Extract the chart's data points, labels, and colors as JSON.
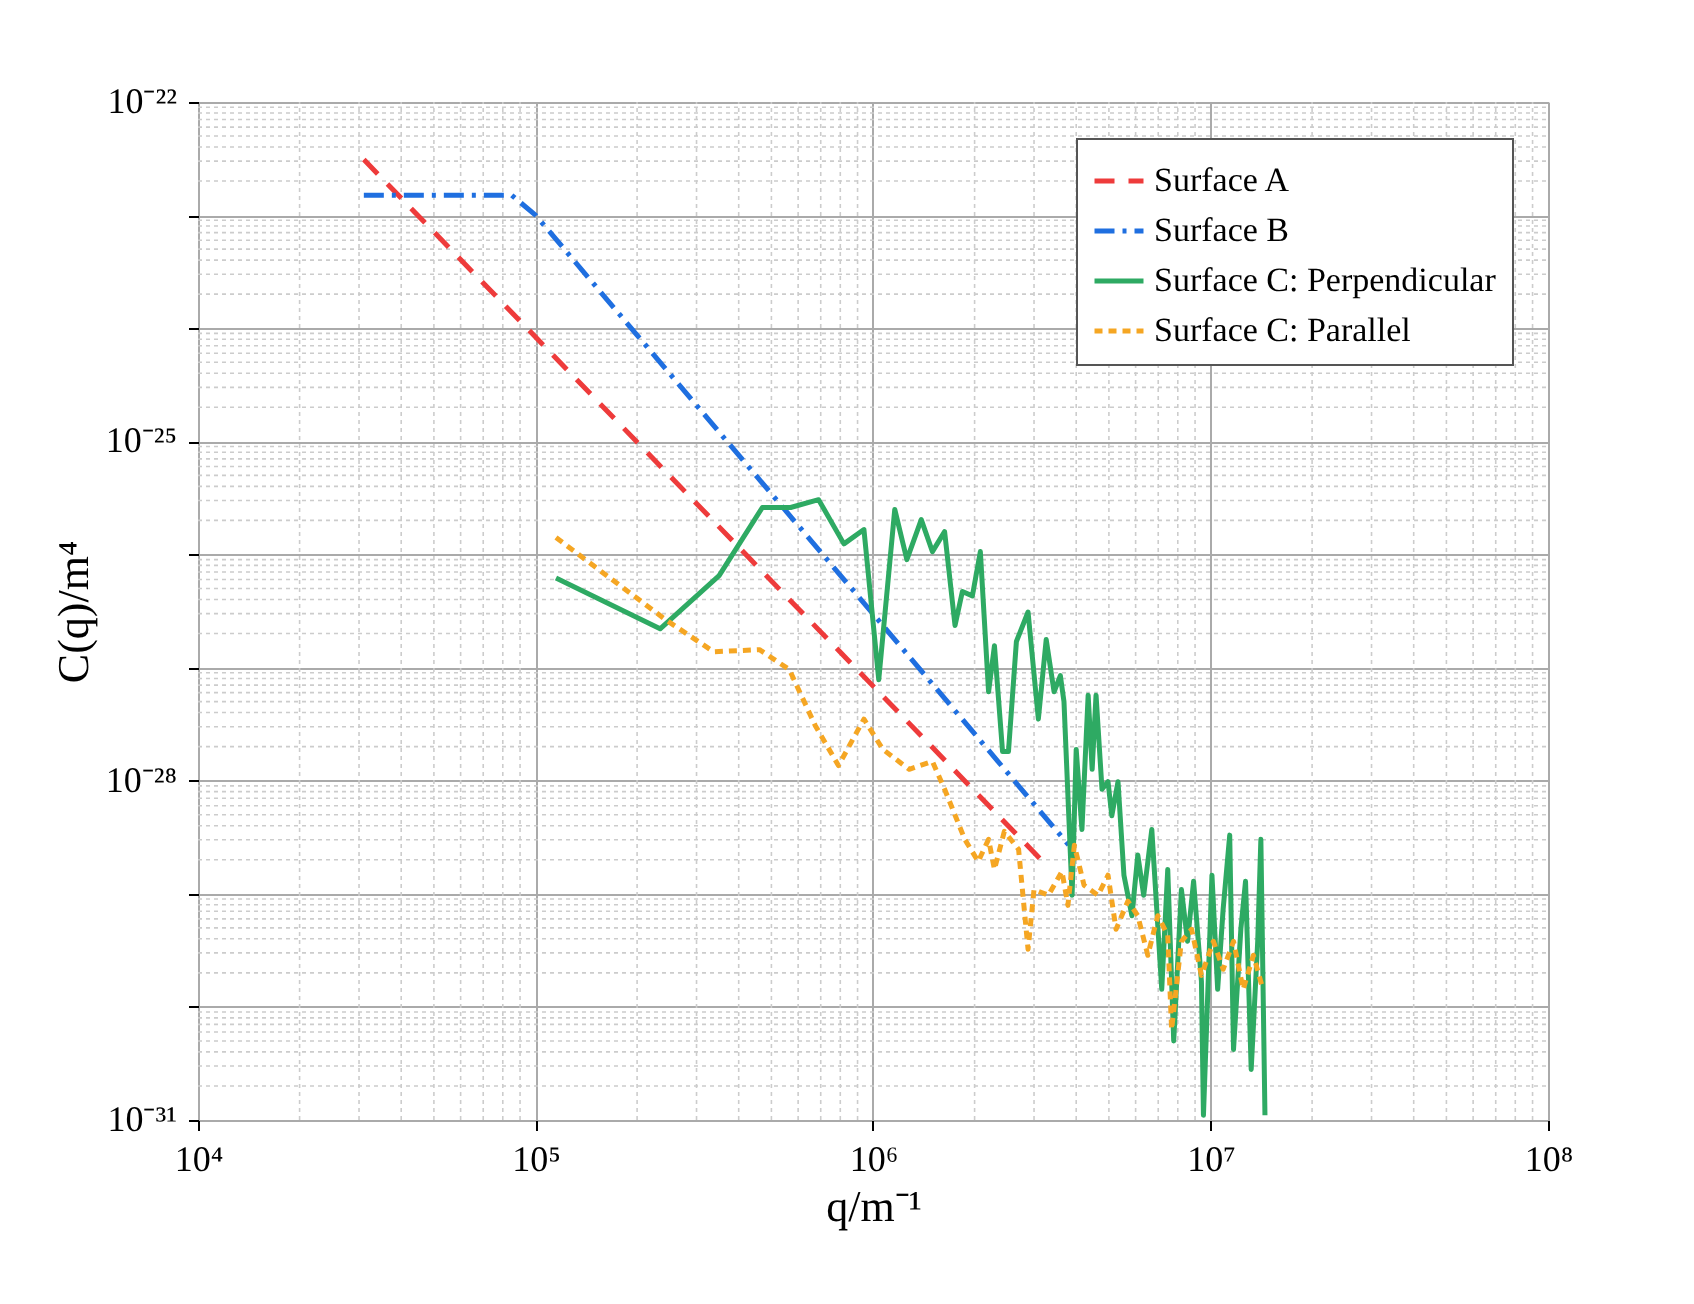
{
  "chart_data": {
    "type": "line",
    "xlabel": "q/m⁻¹",
    "ylabel": "C(q)/m⁴",
    "log": "xy",
    "grid": true,
    "legend": "top right",
    "xlim": [
      10000.0,
      100000000.0
    ],
    "ylim": [
      1e-31,
      1e-22
    ],
    "xticks": [
      {
        "value": 10000.0,
        "label": "10⁴"
      },
      {
        "value": 100000.0,
        "label": "10⁵"
      },
      {
        "value": 1000000.0,
        "label": "10⁶"
      },
      {
        "value": 10000000.0,
        "label": "10⁷"
      },
      {
        "value": 100000000.0,
        "label": "10⁸"
      }
    ],
    "yticks": [
      {
        "value": 1e-31,
        "label": "10⁻³¹"
      },
      {
        "value": 1e-30,
        "label": null
      },
      {
        "value": 1e-29,
        "label": null
      },
      {
        "value": 1e-28,
        "label": "10⁻²⁸"
      },
      {
        "value": 1e-27,
        "label": null
      },
      {
        "value": 1e-26,
        "label": null
      },
      {
        "value": 1e-25,
        "label": "10⁻²⁵"
      },
      {
        "value": 1e-24,
        "label": null
      },
      {
        "value": 1e-23,
        "label": null
      },
      {
        "value": 1e-22,
        "label": "10⁻²²"
      }
    ],
    "series": [
      {
        "name": "Surface A",
        "color": "#ee3b3b",
        "line_style": "dashed",
        "x": [
          31000.0,
          3200000.0
        ],
        "values": [
          3.1e-23,
          1.9e-29
        ]
      },
      {
        "name": "Surface B",
        "color": "#1f6fe0",
        "line_style": "dashdot",
        "x": [
          31000.0,
          85000.0,
          100000.0,
          3800000.0
        ],
        "values": [
          1.5e-23,
          1.5e-23,
          1e-23,
          2.7e-29
        ]
      },
      {
        "name": "Surface C: Perpendicular",
        "color": "#2eaa63",
        "line_style": "solid",
        "x": [
          115000.0,
          234000.0,
          350000.0,
          470000.0,
          570000.0,
          690000.0,
          820000.0,
          940000.0,
          1040000.0,
          1160000.0,
          1260000.0,
          1390000.0,
          1500000.0,
          1630000.0,
          1750000.0,
          1840000.0,
          1970000.0,
          2080000.0,
          2200000.0,
          2290000.0,
          2420000.0,
          2520000.0,
          2660000.0,
          2880000.0,
          3090000.0,
          3260000.0,
          3440000.0,
          3590000.0,
          3680000.0,
          3890000.0,
          4000000.0,
          4160000.0,
          4340000.0,
          4460000.0,
          4580000.0,
          4770000.0,
          4970000.0,
          5100000.0,
          5320000.0,
          5540000.0,
          5850000.0,
          6090000.0,
          6340000.0,
          6700000.0,
          7170000.0,
          7470000.0,
          7780000.0,
          8200000.0,
          8550000.0,
          8910000.0,
          9400000.0,
          9530000.0,
          10100000.0,
          10500000.0,
          10900000.0,
          11400000.0,
          11700000.0,
          12300000.0,
          12700000.0,
          13200000.0,
          13800000.0,
          14100000.0,
          14500000.0
        ],
        "values": [
          6.2e-27,
          2.2e-27,
          6.5e-27,
          2.6e-26,
          2.6e-26,
          3.05e-26,
          1.24e-26,
          1.66e-26,
          7.8e-28,
          2.5e-26,
          9e-27,
          2.03e-26,
          1.06e-26,
          1.59e-26,
          2.35e-27,
          4.7e-27,
          4.3e-27,
          1.06e-26,
          6.1e-28,
          1.56e-27,
          1.81e-28,
          1.81e-28,
          1.7e-27,
          3.1e-27,
          3.5e-28,
          1.77e-27,
          6.1e-28,
          8.5e-28,
          5e-28,
          9.7e-30,
          1.89e-28,
          3.7e-29,
          5.7e-28,
          1.26e-28,
          5.7e-28,
          8.4e-29,
          9.8e-29,
          4.9e-29,
          9.8e-29,
          1.46e-29,
          6.4e-30,
          2.2e-29,
          9.7e-30,
          3.7e-29,
          1.43e-30,
          1.64e-29,
          5e-31,
          1.09e-29,
          3.8e-30,
          1.29e-29,
          1.68e-30,
          1.1e-31,
          1.46e-29,
          1.43e-30,
          7.3e-30,
          3.3e-29,
          4.2e-31,
          4.85e-30,
          1.29e-29,
          2.8e-31,
          3.8e-30,
          3.03e-29,
          1.1e-31
        ]
      },
      {
        "name": "Surface C: Parallel",
        "color": "#f5a623",
        "line_style": "dotted",
        "x": [
          115000.0,
          243000.0,
          337000.0,
          461000.0,
          565000.0,
          674000.0,
          790000.0,
          940000.0,
          1070000.0,
          1280000.0,
          1500000.0,
          1630000.0,
          1870000.0,
          2050000.0,
          2200000.0,
          2290000.0,
          2450000.0,
          2700000.0,
          2880000.0,
          3000000.0,
          3310000.0,
          3630000.0,
          3780000.0,
          3950000.0,
          4220000.0,
          4640000.0,
          4970000.0,
          5250000.0,
          5690000.0,
          6090000.0,
          6520000.0,
          6980000.0,
          7470000.0,
          7670000.0,
          8200000.0,
          8790000.0,
          9400000.0,
          10200000.0,
          10900000.0,
          11700000.0,
          12500000.0,
          13400000.0,
          14300000.0
        ],
        "values": [
          1.41e-26,
          2.65e-27,
          1.38e-27,
          1.44e-27,
          9.6e-28,
          3.08e-28,
          1.36e-28,
          3.5e-28,
          1.89e-28,
          1.26e-28,
          1.48e-28,
          8.4e-29,
          3.03e-29,
          1.93e-29,
          3.03e-29,
          1.64e-29,
          3.56e-29,
          2.47e-29,
          3.23e-30,
          1.09e-29,
          9.7e-30,
          1.58e-29,
          7.9e-30,
          2.68e-29,
          1.19e-29,
          9.7e-30,
          1.46e-29,
          4.85e-30,
          8.6e-30,
          6.4e-30,
          2.86e-30,
          6.4e-30,
          4.3e-30,
          6.3e-31,
          3.8e-30,
          4.85e-30,
          1.9e-30,
          3.8e-30,
          2.15e-30,
          3.8e-30,
          1.43e-30,
          2.86e-30,
          1.43e-30
        ]
      }
    ]
  }
}
